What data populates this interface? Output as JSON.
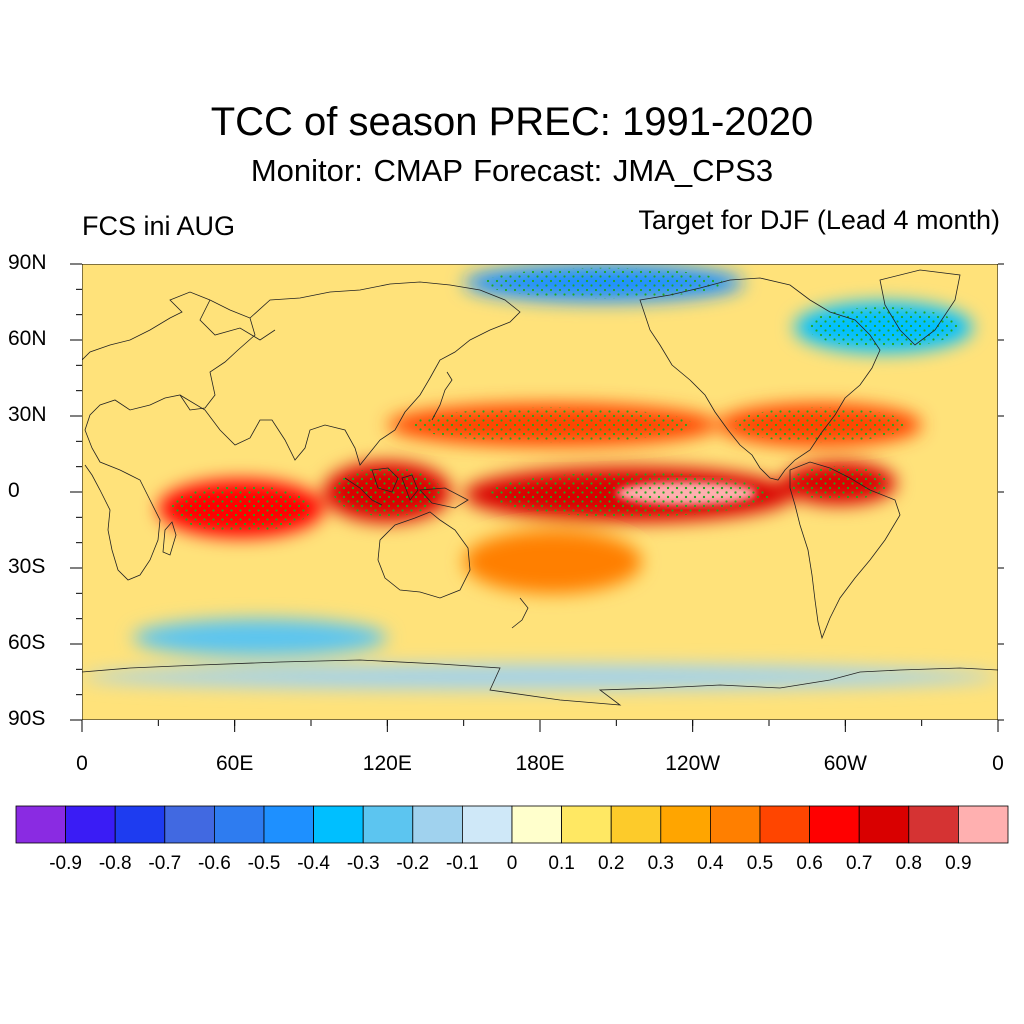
{
  "title": "TCC of season PREC: 1991-2020",
  "subtitle": "Monitor: CMAP   Forecast: JMA_CPS3",
  "left_label": "FCS ini AUG",
  "right_label": "Target for DJF (Lead 4 month)",
  "axes": {
    "y_ticks": [
      "90N",
      "60N",
      "30N",
      "0",
      "30S",
      "60S",
      "90S"
    ],
    "x_ticks": [
      "0",
      "60E",
      "120E",
      "180E",
      "120W",
      "60W",
      "0"
    ]
  },
  "colorbar": {
    "labels": [
      "-0.9",
      "-0.8",
      "-0.7",
      "-0.6",
      "-0.5",
      "-0.4",
      "-0.3",
      "-0.2",
      "-0.1",
      "0",
      "0.1",
      "0.2",
      "0.3",
      "0.4",
      "0.5",
      "0.6",
      "0.7",
      "0.8",
      "0.9"
    ],
    "colors": [
      "#8a2be2",
      "#3a1cf5",
      "#1e3cf0",
      "#4169e1",
      "#2e7cf0",
      "#1e90ff",
      "#00bfff",
      "#5cc5f0",
      "#a0d2ee",
      "#cfe8f8",
      "#ffffcc",
      "#ffe863",
      "#fdcb2a",
      "#ffa500",
      "#ff7f00",
      "#ff4500",
      "#ff0000",
      "#d90000",
      "#d53333",
      "#ffb0b0"
    ]
  },
  "map": {
    "projection": "cylindrical-equidistant",
    "lon_range": [
      0,
      360
    ],
    "lat_range": [
      -90,
      90
    ],
    "stippling": "significant-correlation",
    "features": [
      {
        "name": "tropical-pacific-maximum",
        "lon": [
          150,
          280
        ],
        "lat": [
          -12,
          10
        ],
        "tcc": 0.75
      },
      {
        "name": "central-pacific-peak",
        "lon": [
          210,
          265
        ],
        "lat": [
          -5,
          4
        ],
        "tcc": 0.9
      },
      {
        "name": "maritime-continent",
        "lon": [
          95,
          145
        ],
        "lat": [
          -12,
          12
        ],
        "tcc": 0.7
      },
      {
        "name": "indian-ocean",
        "lon": [
          30,
          95
        ],
        "lat": [
          -18,
          5
        ],
        "tcc": 0.6
      },
      {
        "name": "north-pacific-band",
        "lon": [
          120,
          250
        ],
        "lat": [
          18,
          35
        ],
        "tcc": 0.5
      },
      {
        "name": "atlantic-band",
        "lon": [
          250,
          330
        ],
        "lat": [
          18,
          35
        ],
        "tcc": 0.55
      },
      {
        "name": "tropical-america",
        "lon": [
          275,
          320
        ],
        "lat": [
          -5,
          12
        ],
        "tcc": 0.7
      },
      {
        "name": "south-pacific-convergence",
        "lon": [
          150,
          220
        ],
        "lat": [
          -40,
          -15
        ],
        "tcc": 0.45
      },
      {
        "name": "arctic-negative",
        "lon": [
          150,
          260
        ],
        "lat": [
          75,
          90
        ],
        "tcc": -0.5
      },
      {
        "name": "north-atlantic-negative",
        "lon": [
          280,
          350
        ],
        "lat": [
          55,
          75
        ],
        "tcc": -0.4
      },
      {
        "name": "southern-ocean-negative",
        "lon": [
          20,
          120
        ],
        "lat": [
          -65,
          -50
        ],
        "tcc": -0.3
      },
      {
        "name": "antarctic-negative",
        "lon": [
          0,
          360
        ],
        "lat": [
          -78,
          -68
        ],
        "tcc": -0.2
      }
    ]
  }
}
